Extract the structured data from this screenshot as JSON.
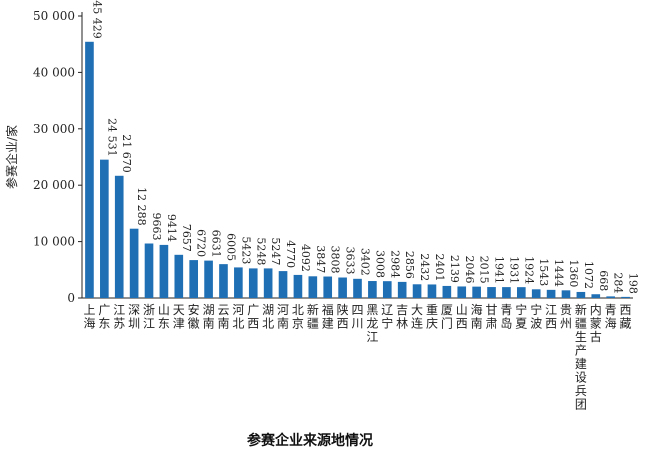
{
  "chart_data": {
    "type": "bar",
    "caption": "参赛企业来源地情况",
    "ylabel": "参赛企业/家",
    "ylim": [
      0,
      50000
    ],
    "yticks": [
      "0",
      "10 000",
      "20 000",
      "30 000",
      "40 000",
      "50 000"
    ],
    "ytick_values": [
      0,
      10000,
      20000,
      30000,
      40000,
      50000
    ],
    "bar_color": "#1f6fb5",
    "grid": false,
    "categories": [
      "上海",
      "广东",
      "江苏",
      "深圳",
      "浙江",
      "山东",
      "天津",
      "安徽",
      "湖南",
      "云南",
      "河北",
      "广西",
      "湖北",
      "河南",
      "北京",
      "新疆",
      "福建",
      "陕西",
      "四川",
      "黑龙江",
      "辽宁",
      "吉林",
      "大连",
      "重庆",
      "厦门",
      "山西",
      "海南",
      "甘肃",
      "青岛",
      "宁夏",
      "宁波",
      "江西",
      "贵州",
      "新疆生产建设兵团",
      "内蒙古",
      "青海",
      "西藏"
    ],
    "values": [
      45429,
      24531,
      21670,
      12288,
      9663,
      9414,
      7657,
      6720,
      6631,
      6005,
      5423,
      5248,
      5247,
      4770,
      4092,
      3847,
      3808,
      3633,
      3402,
      3008,
      2984,
      2856,
      2432,
      2401,
      2139,
      2046,
      2015,
      1941,
      1931,
      1924,
      1543,
      1444,
      1360,
      1072,
      668,
      284,
      198
    ],
    "value_labels": [
      "45 429",
      "24 531",
      "21 670",
      "12 288",
      "9663",
      "9414",
      "7657",
      "6720",
      "6631",
      "6005",
      "5423",
      "5248",
      "5247",
      "4770",
      "4092",
      "3847",
      "3808",
      "3633",
      "3402",
      "3008",
      "2984",
      "2856",
      "2432",
      "2401",
      "2139",
      "2046",
      "2015",
      "1941",
      "1931",
      "1924",
      "1543",
      "1444",
      "1360",
      "1072",
      "668",
      "284",
      "198"
    ]
  }
}
